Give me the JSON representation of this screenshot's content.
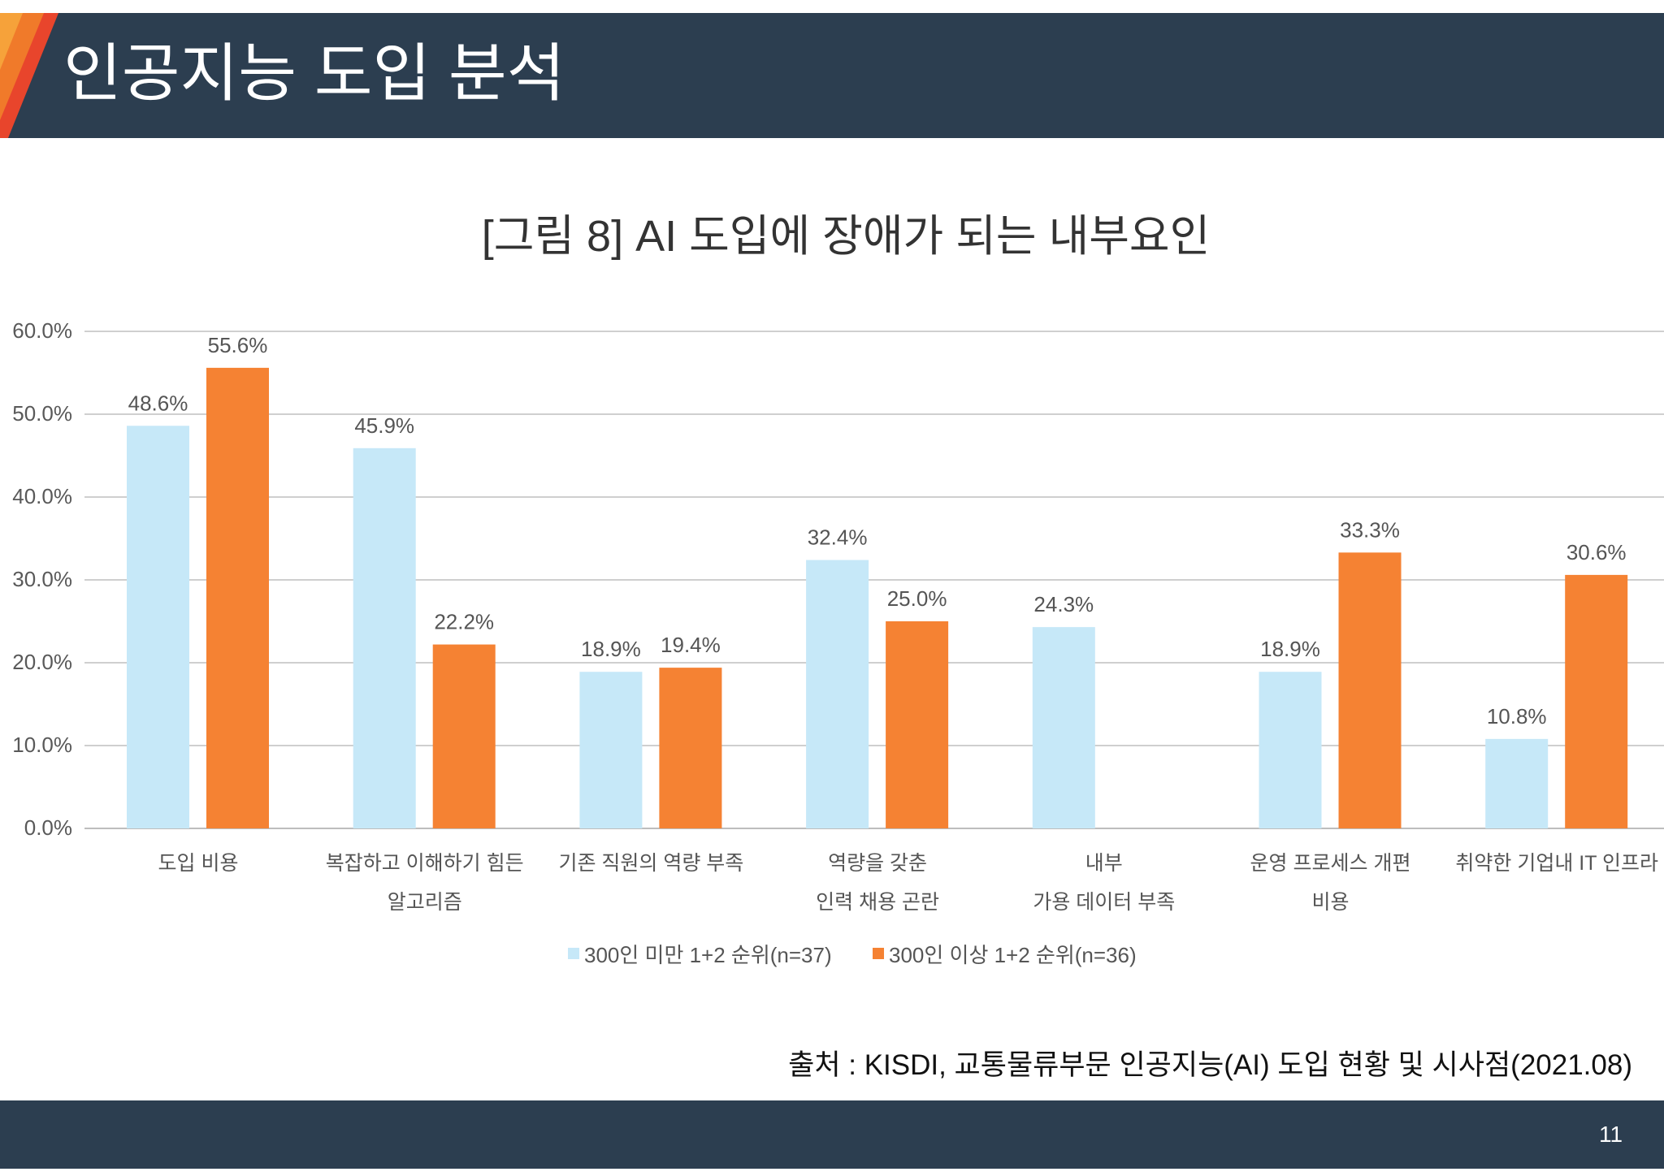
{
  "slide": {
    "title": "인공지능 도입 분석",
    "source": "출처 : KISDI, 교통물류부문 인공지능(AI) 도입 현황 및 시사점(2021.08)",
    "page_number": "11"
  },
  "theme": {
    "bar_color": "#2c3e50",
    "accent_light": "#f6a23a",
    "accent_orange": "#f07a2a",
    "accent_red": "#e8452c"
  },
  "chart_data": {
    "type": "bar",
    "title": "[그림 8] AI 도입에 장애가 되는 내부요인",
    "categories": [
      [
        "도입 비용"
      ],
      [
        "복잡하고 이해하기 힘든",
        "알고리즘"
      ],
      [
        "기존 직원의 역량 부족"
      ],
      [
        "역량을 갖춘",
        "인력 채용 곤란"
      ],
      [
        "내부",
        "가용 데이터 부족"
      ],
      [
        "운영 프로세스 개편",
        "비용"
      ],
      [
        "취약한 기업내 IT 인프라"
      ]
    ],
    "series": [
      {
        "name": "300인 미만 1+2 순위(n=37)",
        "color": "#c6e8f8",
        "values": [
          48.6,
          45.9,
          18.9,
          32.4,
          24.3,
          18.9,
          10.8
        ],
        "data_labels": [
          "48.6%",
          "45.9%",
          "18.9%",
          "32.4%",
          "24.3%",
          "18.9%",
          "10.8%"
        ]
      },
      {
        "name": "300인 이상 1+2 순위(n=36)",
        "color": "#f58233",
        "values": [
          55.6,
          22.2,
          19.4,
          25.0,
          null,
          33.3,
          30.6
        ],
        "data_labels": [
          "55.6%",
          "22.2%",
          "19.4%",
          "25.0%",
          null,
          "33.3%",
          "30.6%"
        ]
      }
    ],
    "ylim": [
      0,
      60
    ],
    "yticks": [
      0,
      10,
      20,
      30,
      40,
      50,
      60
    ],
    "ytick_labels": [
      "0.0%",
      "10.0%",
      "20.0%",
      "30.0%",
      "40.0%",
      "50.0%",
      "60.0%"
    ],
    "grid": true,
    "legend_position": "bottom"
  }
}
